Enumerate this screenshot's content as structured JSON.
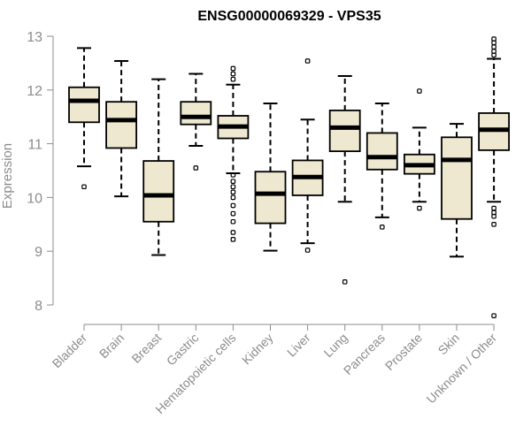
{
  "chart_data": {
    "type": "boxplot",
    "title": "ENSG00000069329 - VPS35",
    "xlabel": "",
    "ylabel": "Expression",
    "ylim": [
      7.8,
      13
    ],
    "yticks": [
      8,
      9,
      10,
      11,
      12,
      13
    ],
    "box_color": "#ede8cf",
    "categories": [
      "Bladder",
      "Brain",
      "Breast",
      "Gastric",
      "Hematopoietic cells",
      "Kidney",
      "Liver",
      "Lung",
      "Pancreas",
      "Prostate",
      "Skin",
      "Unknown / Other"
    ],
    "series": [
      {
        "name": "Bladder",
        "min": 10.58,
        "q1": 11.4,
        "median": 11.8,
        "q3": 12.05,
        "max": 12.78,
        "outliers": [
          10.2
        ]
      },
      {
        "name": "Brain",
        "min": 10.02,
        "q1": 10.92,
        "median": 11.44,
        "q3": 11.78,
        "max": 12.54,
        "outliers": []
      },
      {
        "name": "Breast",
        "min": 8.93,
        "q1": 9.55,
        "median": 10.04,
        "q3": 10.68,
        "max": 12.2,
        "outliers": []
      },
      {
        "name": "Gastric",
        "min": 10.96,
        "q1": 11.36,
        "median": 11.5,
        "q3": 11.78,
        "max": 12.3,
        "outliers": [
          10.55
        ]
      },
      {
        "name": "Hematopoietic cells",
        "min": 10.45,
        "q1": 11.1,
        "median": 11.32,
        "q3": 11.52,
        "max": 12.1,
        "outliers": [
          12.2,
          12.3,
          12.4,
          10.42,
          10.3,
          10.2,
          10.1,
          10.0,
          9.85,
          9.7,
          9.55,
          9.35,
          9.22
        ]
      },
      {
        "name": "Kidney",
        "min": 9.01,
        "q1": 9.52,
        "median": 10.07,
        "q3": 10.48,
        "max": 11.75,
        "outliers": []
      },
      {
        "name": "Liver",
        "min": 9.15,
        "q1": 10.04,
        "median": 10.38,
        "q3": 10.69,
        "max": 11.45,
        "outliers": [
          12.54,
          9.02
        ]
      },
      {
        "name": "Lung",
        "min": 9.92,
        "q1": 10.86,
        "median": 11.3,
        "q3": 11.62,
        "max": 12.26,
        "outliers": [
          8.43
        ]
      },
      {
        "name": "Pancreas",
        "min": 9.63,
        "q1": 10.52,
        "median": 10.75,
        "q3": 11.2,
        "max": 11.75,
        "outliers": [
          9.45
        ]
      },
      {
        "name": "Prostate",
        "min": 9.92,
        "q1": 10.44,
        "median": 10.6,
        "q3": 10.8,
        "max": 11.3,
        "outliers": [
          11.98,
          9.8
        ]
      },
      {
        "name": "Skin",
        "min": 8.9,
        "q1": 9.6,
        "median": 10.7,
        "q3": 11.12,
        "max": 11.37,
        "outliers": []
      },
      {
        "name": "Unknown / Other",
        "min": 9.92,
        "q1": 10.88,
        "median": 11.26,
        "q3": 11.57,
        "max": 12.58,
        "outliers": [
          12.95,
          12.88,
          12.8,
          12.72,
          12.65,
          9.8,
          9.72,
          9.65,
          9.5,
          7.8
        ]
      }
    ]
  }
}
